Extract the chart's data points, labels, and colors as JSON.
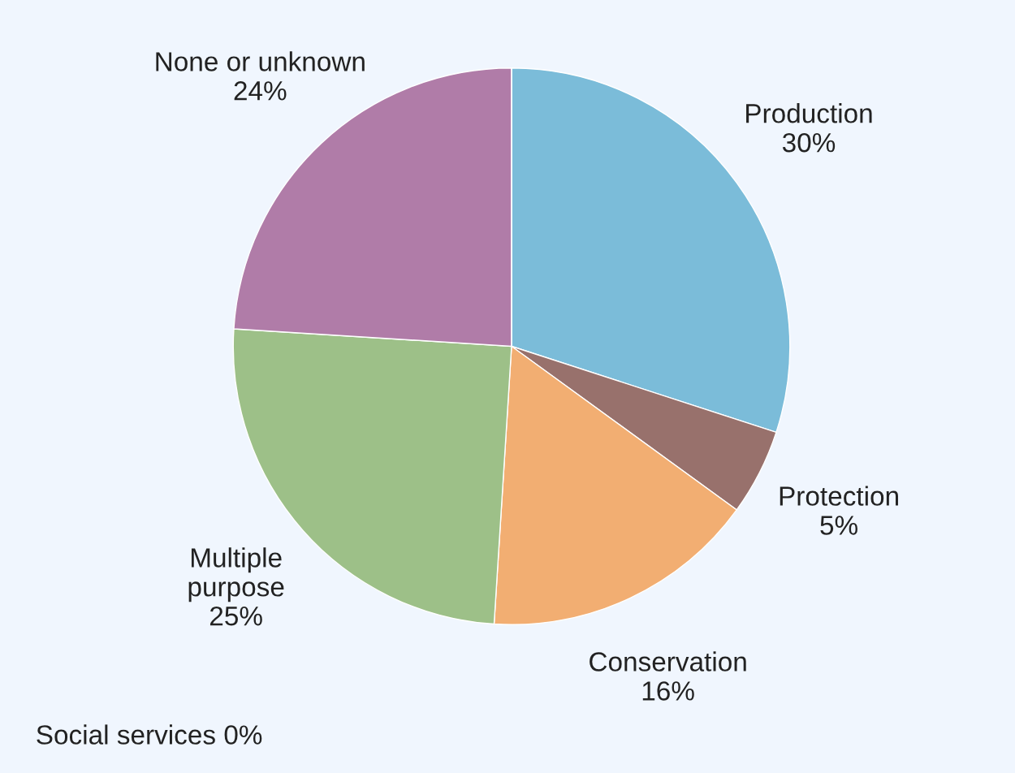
{
  "chart_data": {
    "type": "pie",
    "categories": [
      "Production",
      "Protection",
      "Conservation",
      "Multiple purpose",
      "None or unknown",
      "Social services"
    ],
    "values": [
      30,
      5,
      16,
      25,
      24,
      0
    ],
    "value_labels": [
      "30%",
      "5%",
      "16%",
      "25%",
      "24%",
      "0%"
    ],
    "colors": [
      "#7bbcd9",
      "#98716c",
      "#f2ae72",
      "#9dc088",
      "#b07ca8",
      "#d8d8d8"
    ]
  }
}
